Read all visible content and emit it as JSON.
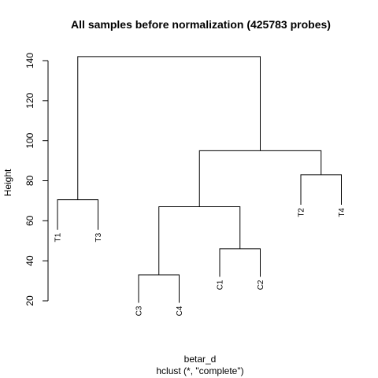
{
  "chart_data": {
    "type": "dendrogram",
    "title": "All samples before normalization (425783 probes)",
    "ylabel": "Height",
    "xlabel": "betar_d",
    "sublabel": "hclust (*, \"complete\")",
    "yticks": [
      20,
      40,
      60,
      80,
      100,
      120,
      140
    ],
    "ylim": [
      20,
      145
    ],
    "leaves": [
      "T1",
      "T3",
      "C3",
      "C4",
      "C1",
      "C2",
      "T2",
      "T4"
    ],
    "merges": [
      {
        "left": "C3",
        "right": "C4",
        "height": 33
      },
      {
        "left": "C1",
        "right": "C2",
        "height": 46
      },
      {
        "left": "T1",
        "right": "T3",
        "height": 70.5
      },
      {
        "left": "C3C4",
        "right": "C1C2",
        "height": 67
      },
      {
        "left": "T2",
        "right": "T4",
        "height": 83
      },
      {
        "left": "C",
        "right": "T2T4",
        "height": 95
      },
      {
        "left": "T1T3",
        "right": "rest",
        "height": 142
      }
    ]
  }
}
